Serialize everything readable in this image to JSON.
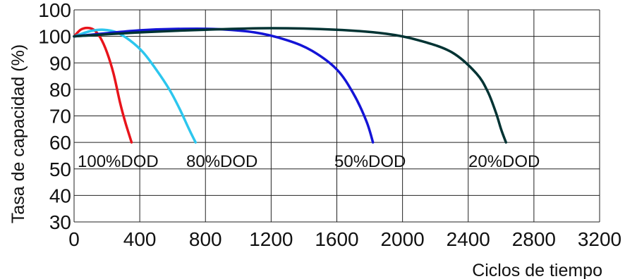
{
  "chart_data": {
    "type": "line",
    "xlabel": "Ciclos de tiempo",
    "ylabel": "Tasa de capacidad (%)",
    "xlim": [
      0,
      3200
    ],
    "x_ticks": [
      "0",
      "400",
      "800",
      "1200",
      "1600",
      "2000",
      "2400",
      "2800",
      "3200"
    ],
    "y_ticks": [
      "30",
      "40",
      "50",
      "60",
      "70",
      "80",
      "90",
      "100",
      "100"
    ],
    "grid": true,
    "legend": "inline labels below curves",
    "series": [
      {
        "name": "100%DOD",
        "color": "#e8141b",
        "x": [
          0,
          40,
          80,
          120,
          160,
          200,
          240,
          280,
          310,
          330,
          350
        ],
        "y": [
          100,
          102.5,
          103.2,
          102.5,
          99.5,
          94,
          86,
          75,
          68,
          64,
          60
        ]
      },
      {
        "name": "80%DOD",
        "color": "#2cc6ee",
        "x": [
          0,
          100,
          180,
          260,
          340,
          420,
          500,
          580,
          640,
          700,
          740
        ],
        "y": [
          100,
          102,
          102.5,
          101.5,
          98.5,
          94,
          87.5,
          80,
          73,
          65,
          60
        ]
      },
      {
        "name": "50%DOD",
        "color": "#1414d6",
        "x": [
          0,
          200,
          400,
          600,
          850,
          1100,
          1300,
          1450,
          1600,
          1700,
          1780,
          1820
        ],
        "y": [
          100,
          101.2,
          102.3,
          102.8,
          102.8,
          101.5,
          98.5,
          94.5,
          87.5,
          78.5,
          68,
          60
        ]
      },
      {
        "name": "20%DOD",
        "color": "#003333",
        "x": [
          0,
          400,
          800,
          1200,
          1600,
          1900,
          2100,
          2300,
          2450,
          2520,
          2570,
          2600,
          2630
        ],
        "y": [
          100,
          101.5,
          102.5,
          103.1,
          102.5,
          101,
          98.5,
          94,
          86,
          79,
          71,
          65,
          60
        ]
      }
    ]
  }
}
